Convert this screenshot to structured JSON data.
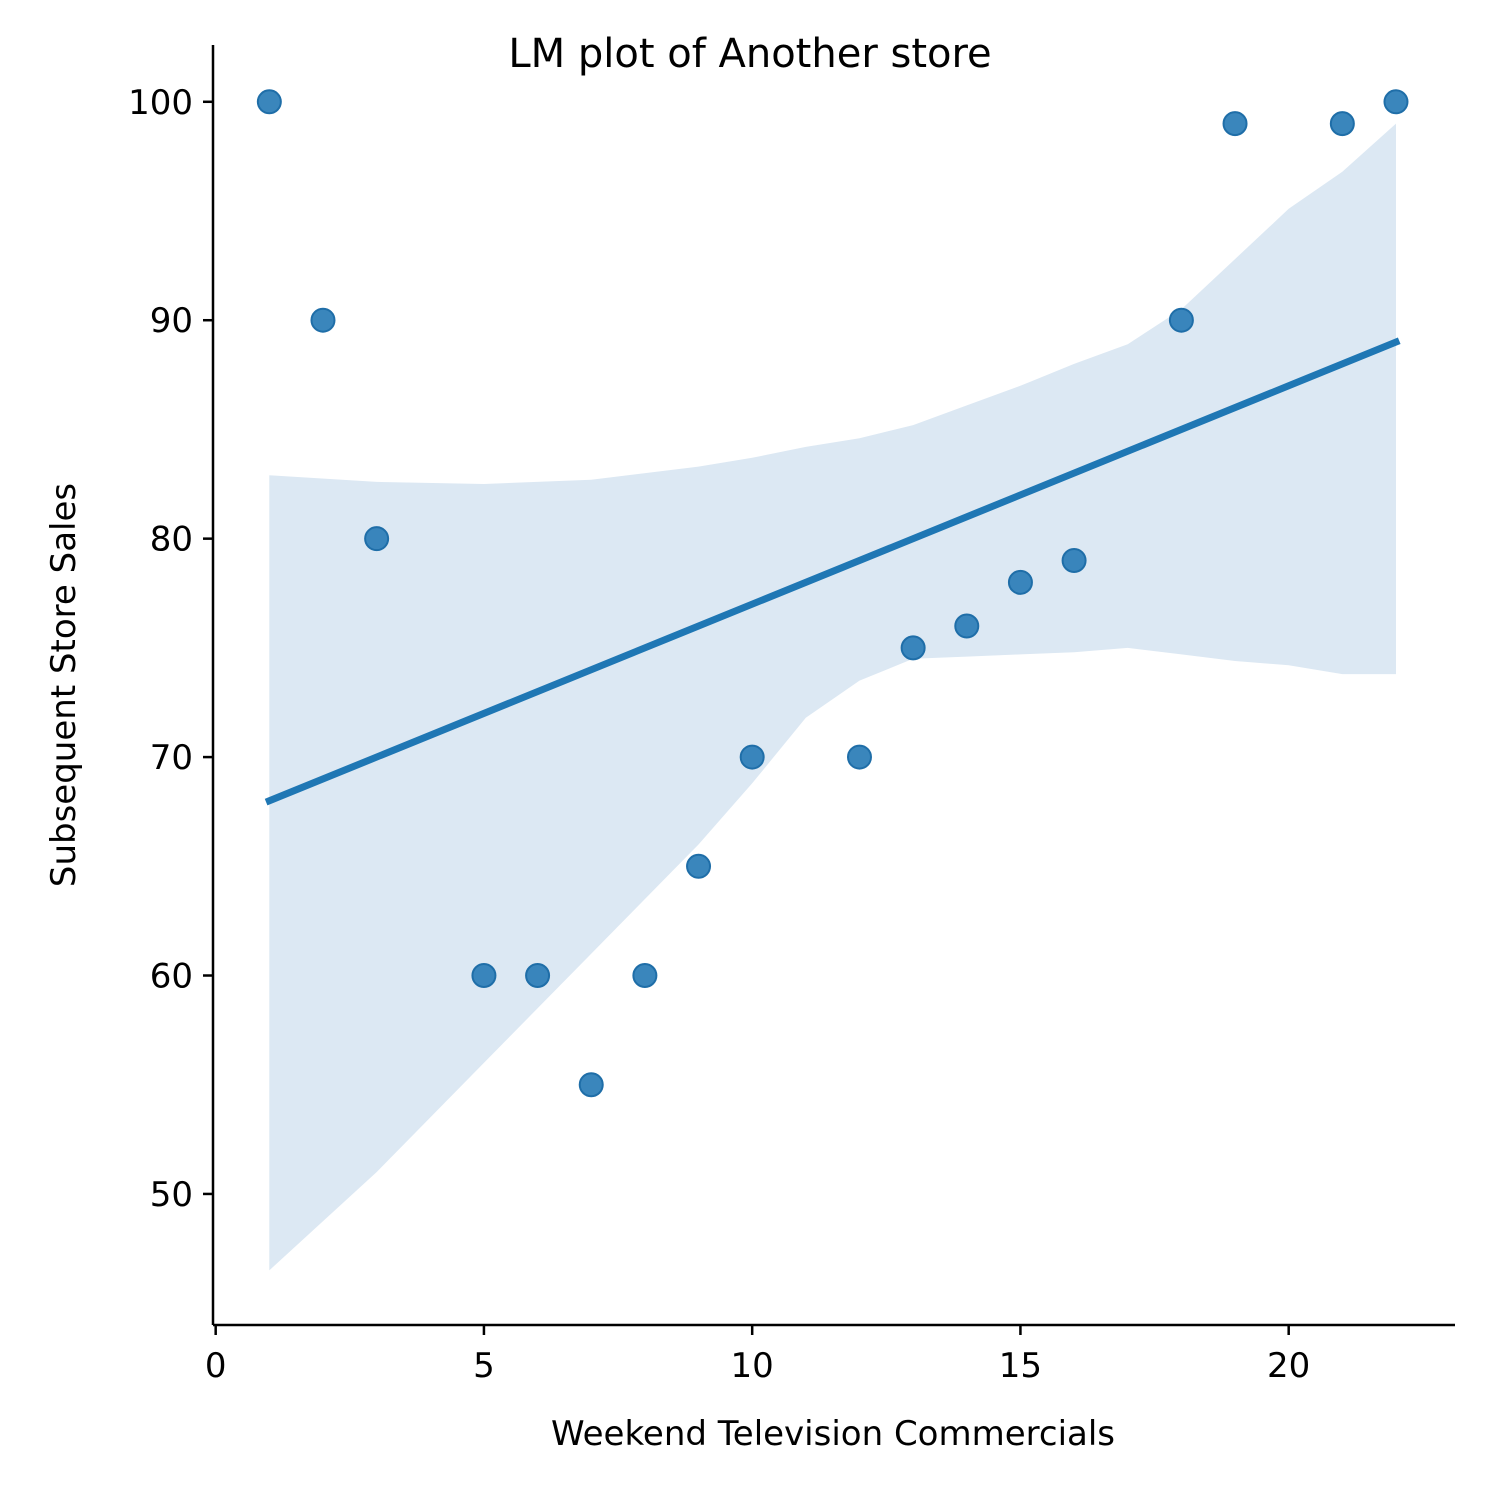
{
  "chart_data": {
    "type": "scatter",
    "title": "LM plot of Another store",
    "xlabel": "Weekend Television Commercials",
    "ylabel": "Subsequent Store Sales",
    "xlim": [
      -0.05,
      23.1
    ],
    "ylim": [
      44,
      102.6
    ],
    "xticks": [
      0,
      5,
      10,
      15,
      20
    ],
    "yticks": [
      50,
      60,
      70,
      80,
      90,
      100
    ],
    "grid": false,
    "colors": {
      "points": "#2f7fb8",
      "point_edge": "#1f6ea8",
      "line": "#1f77b4",
      "band": "#dce8f3"
    },
    "points": [
      {
        "x": 1,
        "y": 100
      },
      {
        "x": 2,
        "y": 90
      },
      {
        "x": 3,
        "y": 80
      },
      {
        "x": 5,
        "y": 60
      },
      {
        "x": 6,
        "y": 60
      },
      {
        "x": 7,
        "y": 55
      },
      {
        "x": 8,
        "y": 60
      },
      {
        "x": 9,
        "y": 65
      },
      {
        "x": 10,
        "y": 70
      },
      {
        "x": 12,
        "y": 70
      },
      {
        "x": 13,
        "y": 75
      },
      {
        "x": 14,
        "y": 76
      },
      {
        "x": 15,
        "y": 78
      },
      {
        "x": 16,
        "y": 79
      },
      {
        "x": 18,
        "y": 90
      },
      {
        "x": 19,
        "y": 99
      },
      {
        "x": 21,
        "y": 99
      },
      {
        "x": 22,
        "y": 100
      }
    ],
    "regression_line": {
      "x": [
        1,
        22
      ],
      "y": [
        68,
        89
      ]
    },
    "confidence_band": {
      "x": [
        1,
        3,
        5,
        7,
        9,
        10,
        11,
        12,
        13,
        14,
        15,
        16,
        17,
        18,
        19,
        20,
        21,
        22
      ],
      "lower": [
        46.5,
        51.0,
        56.0,
        61.0,
        66.0,
        68.8,
        71.8,
        73.5,
        74.5,
        74.6,
        74.7,
        74.8,
        75.0,
        74.7,
        74.4,
        74.2,
        73.8,
        73.8
      ],
      "upper": [
        82.9,
        82.6,
        82.5,
        82.7,
        83.3,
        83.7,
        84.2,
        84.6,
        85.2,
        86.1,
        87.0,
        88.0,
        88.9,
        90.5,
        92.8,
        95.1,
        96.8,
        99.0
      ]
    }
  }
}
